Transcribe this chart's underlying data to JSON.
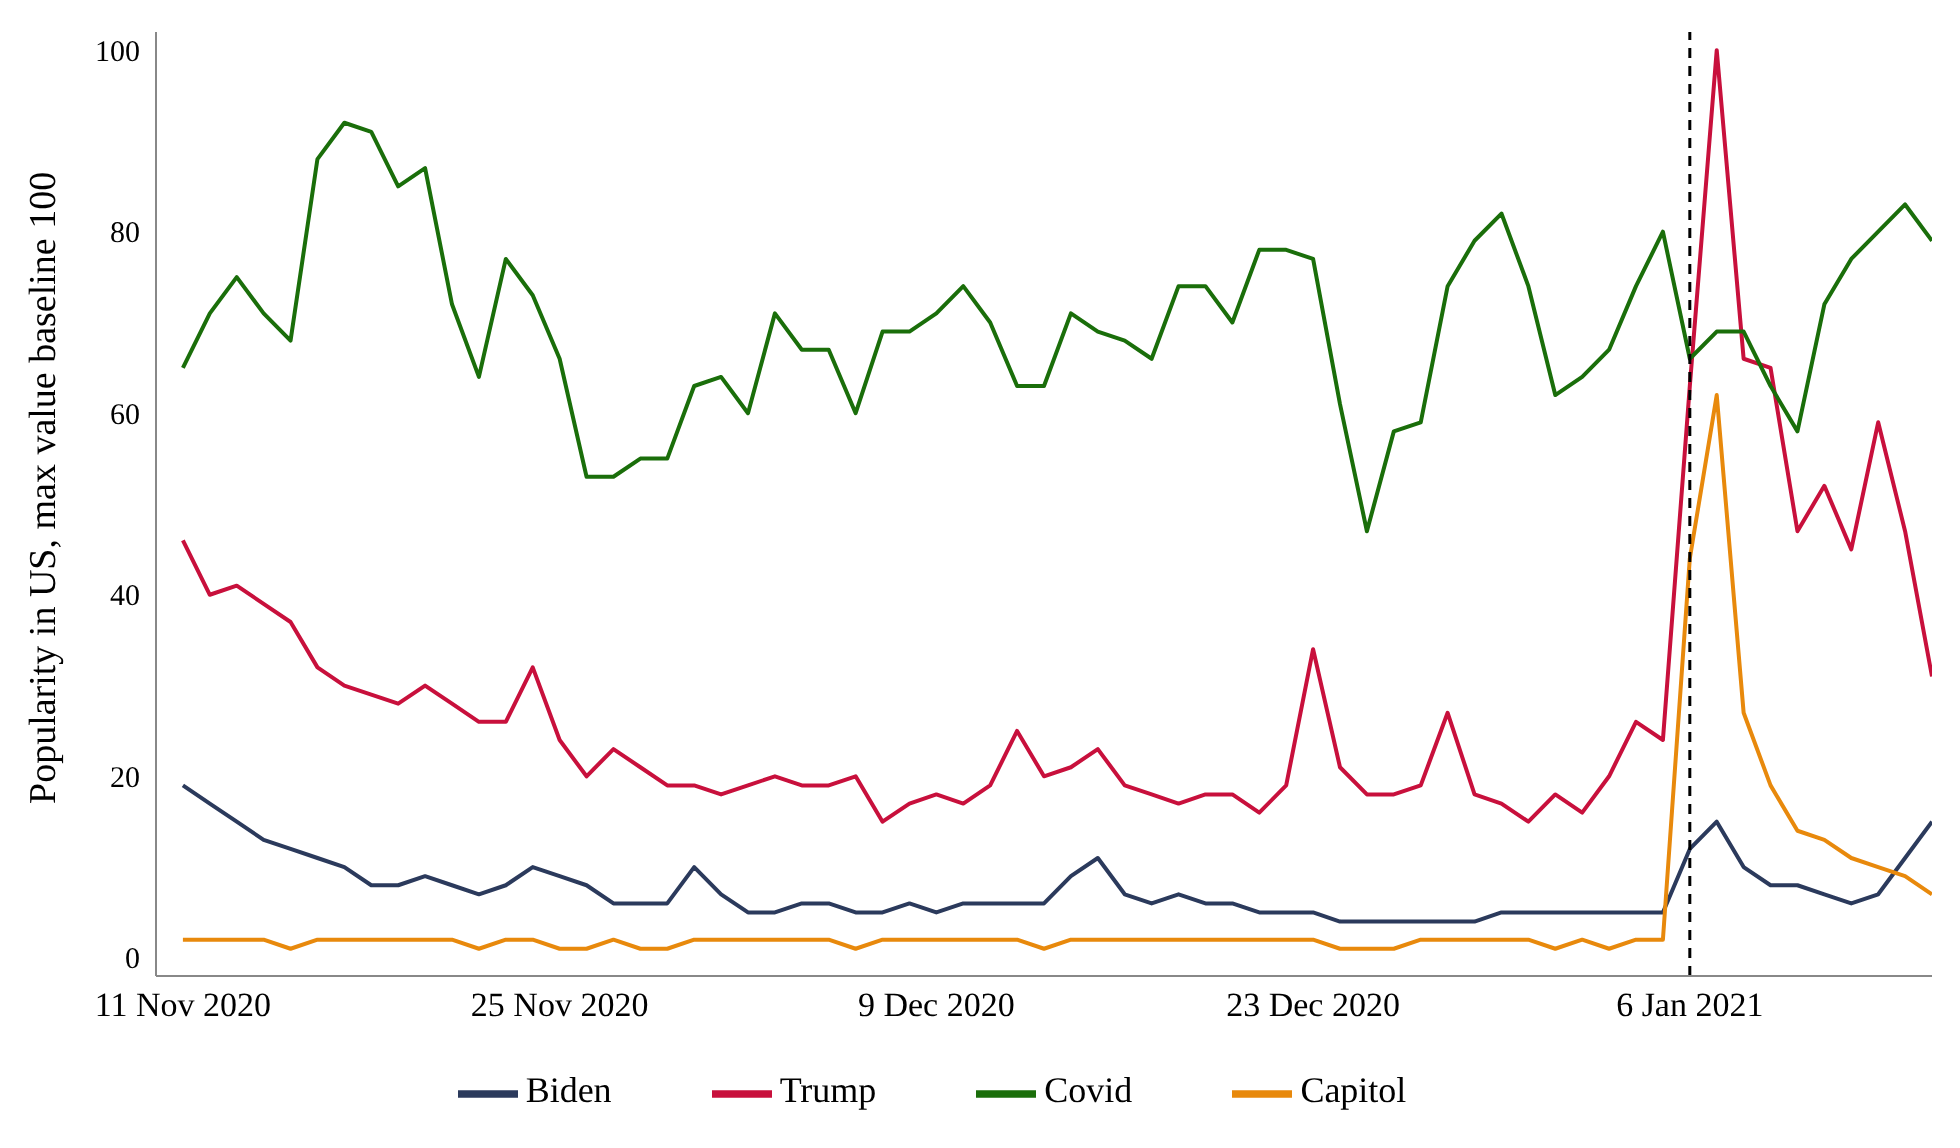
{
  "chart_data": {
    "type": "line",
    "ylabel": "Popularity in US, max value baseline 100",
    "x": [
      "2020-11-11",
      "2020-11-12",
      "2020-11-13",
      "2020-11-14",
      "2020-11-15",
      "2020-11-16",
      "2020-11-17",
      "2020-11-18",
      "2020-11-19",
      "2020-11-20",
      "2020-11-21",
      "2020-11-22",
      "2020-11-23",
      "2020-11-24",
      "2020-11-25",
      "2020-11-26",
      "2020-11-27",
      "2020-11-28",
      "2020-11-29",
      "2020-11-30",
      "2020-12-01",
      "2020-12-02",
      "2020-12-03",
      "2020-12-04",
      "2020-12-05",
      "2020-12-06",
      "2020-12-07",
      "2020-12-08",
      "2020-12-09",
      "2020-12-10",
      "2020-12-11",
      "2020-12-12",
      "2020-12-13",
      "2020-12-14",
      "2020-12-15",
      "2020-12-16",
      "2020-12-17",
      "2020-12-18",
      "2020-12-19",
      "2020-12-20",
      "2020-12-21",
      "2020-12-22",
      "2020-12-23",
      "2020-12-24",
      "2020-12-25",
      "2020-12-26",
      "2020-12-27",
      "2020-12-28",
      "2020-12-29",
      "2020-12-30",
      "2020-12-31",
      "2021-01-01",
      "2021-01-02",
      "2021-01-03",
      "2021-01-04",
      "2021-01-05",
      "2021-01-06",
      "2021-01-07",
      "2021-01-08",
      "2021-01-09",
      "2021-01-10",
      "2021-01-11",
      "2021-01-12",
      "2021-01-13",
      "2021-01-14",
      "2021-01-15"
    ],
    "series": [
      {
        "name": "Biden",
        "color": "#2b3a5c",
        "values": [
          19,
          17,
          15,
          13,
          12,
          11,
          10,
          8,
          8,
          9,
          8,
          7,
          8,
          10,
          9,
          8,
          6,
          6,
          6,
          10,
          7,
          5,
          5,
          6,
          6,
          5,
          5,
          6,
          5,
          6,
          6,
          6,
          6,
          9,
          11,
          7,
          6,
          7,
          6,
          6,
          5,
          5,
          5,
          4,
          4,
          4,
          4,
          4,
          4,
          5,
          5,
          5,
          5,
          5,
          5,
          5,
          12,
          15,
          10,
          8,
          8,
          7,
          6,
          7,
          11,
          15
        ]
      },
      {
        "name": "Trump",
        "color": "#c8103c",
        "values": [
          46,
          40,
          41,
          39,
          37,
          32,
          30,
          29,
          28,
          30,
          28,
          26,
          26,
          32,
          24,
          20,
          23,
          21,
          19,
          19,
          18,
          19,
          20,
          19,
          19,
          20,
          15,
          17,
          18,
          17,
          19,
          25,
          20,
          21,
          23,
          19,
          18,
          17,
          18,
          18,
          16,
          19,
          34,
          21,
          18,
          18,
          19,
          27,
          18,
          17,
          15,
          18,
          16,
          20,
          26,
          24,
          63,
          100,
          66,
          65,
          47,
          52,
          45,
          59,
          47,
          31
        ]
      },
      {
        "name": "Covid",
        "color": "#1a6e0a",
        "values": [
          65,
          71,
          75,
          71,
          68,
          88,
          92,
          91,
          85,
          87,
          72,
          64,
          77,
          73,
          66,
          53,
          53,
          55,
          55,
          63,
          64,
          60,
          71,
          67,
          67,
          60,
          69,
          69,
          71,
          74,
          70,
          63,
          63,
          71,
          69,
          68,
          66,
          74,
          74,
          70,
          78,
          78,
          77,
          61,
          47,
          58,
          59,
          74,
          79,
          82,
          74,
          62,
          64,
          67,
          74,
          80,
          66,
          69,
          69,
          63,
          58,
          72,
          77,
          80,
          83,
          79
        ]
      },
      {
        "name": "Capitol",
        "color": "#e8890c",
        "values": [
          2,
          2,
          2,
          2,
          1,
          2,
          2,
          2,
          2,
          2,
          2,
          1,
          2,
          2,
          1,
          1,
          2,
          1,
          1,
          2,
          2,
          2,
          2,
          2,
          2,
          1,
          2,
          2,
          2,
          2,
          2,
          2,
          1,
          2,
          2,
          2,
          2,
          2,
          2,
          2,
          2,
          2,
          2,
          1,
          1,
          1,
          2,
          2,
          2,
          2,
          2,
          1,
          2,
          1,
          2,
          2,
          44,
          62,
          27,
          19,
          14,
          13,
          11,
          10,
          9,
          7
        ]
      }
    ],
    "xlim": [
      "2020-11-10",
      "2021-01-15"
    ],
    "xticks": [
      {
        "value": "2020-11-11",
        "label": "11 Nov 2020"
      },
      {
        "value": "2020-11-25",
        "label": "25 Nov 2020"
      },
      {
        "value": "2020-12-09",
        "label": "9 Dec 2020"
      },
      {
        "value": "2020-12-23",
        "label": "23 Dec 2020"
      },
      {
        "value": "2021-01-06",
        "label": "6 Jan 2021"
      }
    ],
    "ylim": [
      -2,
      102
    ],
    "yticks": [
      0,
      20,
      40,
      60,
      80,
      100
    ],
    "ref_lines": [
      {
        "axis": "x",
        "value": "2021-01-06",
        "color": "#000000",
        "line_style": "dashed"
      }
    ],
    "grid": false,
    "legend": "bottom"
  }
}
